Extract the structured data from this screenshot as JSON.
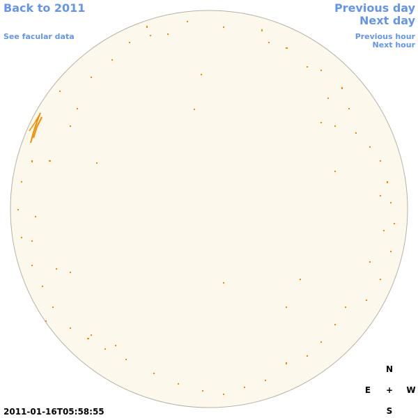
{
  "header": {
    "back_link": "Back to 2011",
    "facular_link": "See facular data"
  },
  "navigation": {
    "previous_day": "Previous day",
    "next_day": "Next day",
    "previous_hour": "Previous hour",
    "next_hour": "Next hour"
  },
  "timestamp": "2011-01-16T05:58:55",
  "compass": {
    "north": "N",
    "east": "E",
    "center": "+",
    "west": "W",
    "south": "S"
  }
}
